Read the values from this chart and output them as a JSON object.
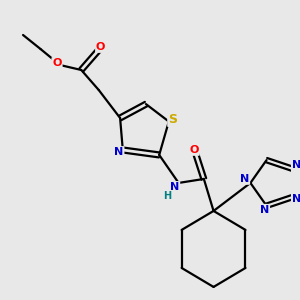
{
  "bg_color": "#e8e8e8",
  "atom_colors": {
    "C": "#000000",
    "N": "#0000cc",
    "O": "#ff0000",
    "S": "#ccaa00",
    "H": "#008080"
  },
  "bond_color": "#000000",
  "bond_width": 1.6,
  "figsize": [
    3.0,
    3.0
  ],
  "dpi": 100
}
